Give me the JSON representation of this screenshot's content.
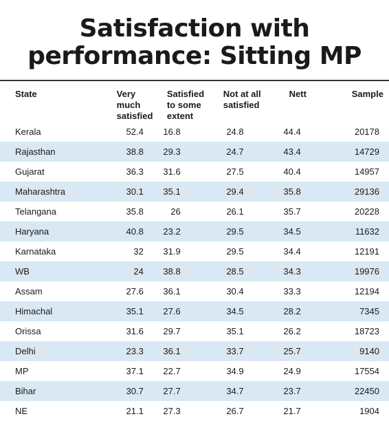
{
  "title_line1": "Satisfaction with",
  "title_line2": "performance: Sitting MP",
  "chart_data": {
    "type": "table",
    "title": "Satisfaction with performance: Sitting MP",
    "columns": [
      "State",
      "Very much satisfied",
      "Satisfied to some extent",
      "Not at all satisfied",
      "Nett",
      "Sample"
    ],
    "rows": [
      [
        "Kerala",
        "52.4",
        "16.8",
        "24.8",
        "44.4",
        "20178"
      ],
      [
        "Rajasthan",
        "38.8",
        "29.3",
        "24.7",
        "43.4",
        "14729"
      ],
      [
        "Gujarat",
        "36.3",
        "31.6",
        "27.5",
        "40.4",
        "14957"
      ],
      [
        "Maharashtra",
        "30.1",
        "35.1",
        "29.4",
        "35.8",
        "29136"
      ],
      [
        "Telangana",
        "35.8",
        "26",
        "26.1",
        "35.7",
        "20228"
      ],
      [
        "Haryana",
        "40.8",
        "23.2",
        "29.5",
        "34.5",
        "11632"
      ],
      [
        "Karnataka",
        "32",
        "31.9",
        "29.5",
        "34.4",
        "12191"
      ],
      [
        "WB",
        "24",
        "38.8",
        "28.5",
        "34.3",
        "19976"
      ],
      [
        "Assam",
        "27.6",
        "36.1",
        "30.4",
        "33.3",
        "12194"
      ],
      [
        "Himachal",
        "35.1",
        "27.6",
        "34.5",
        "28.2",
        "7345"
      ],
      [
        "Orissa",
        "31.6",
        "29.7",
        "35.1",
        "26.2",
        "18723"
      ],
      [
        "Delhi",
        "23.3",
        "36.1",
        "33.7",
        "25.7",
        "9140"
      ],
      [
        "MP",
        "37.1",
        "22.7",
        "34.9",
        "24.9",
        "17554"
      ],
      [
        "Bihar",
        "30.7",
        "27.7",
        "34.7",
        "23.7",
        "22450"
      ],
      [
        "NE",
        "21.1",
        "27.3",
        "26.7",
        "21.7",
        "1904"
      ]
    ]
  }
}
